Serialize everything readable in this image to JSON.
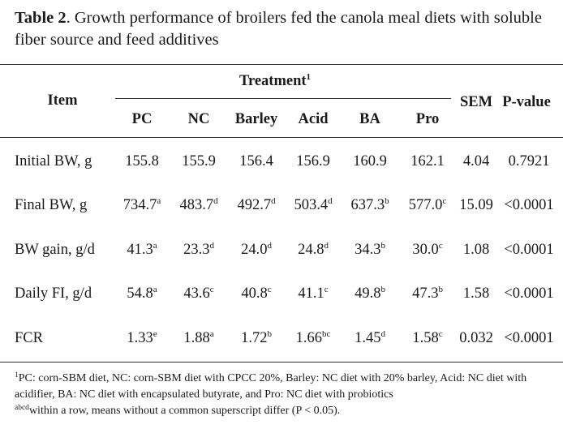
{
  "title": {
    "label": "Table 2",
    "text": ". Growth performance of broilers fed the canola meal diets with soluble fiber source and feed additives"
  },
  "header": {
    "item": "Item",
    "treatment": "Treatment",
    "treatment_sup": "1",
    "columns": [
      "PC",
      "NC",
      "Barley",
      "Acid",
      "BA",
      "Pro"
    ],
    "sem": "SEM",
    "pvalue": "P-value"
  },
  "rows": [
    {
      "item": "Initial BW, g",
      "values": [
        [
          "155.8",
          ""
        ],
        [
          "155.9",
          ""
        ],
        [
          "156.4",
          ""
        ],
        [
          "156.9",
          ""
        ],
        [
          "160.9",
          ""
        ],
        [
          "162.1",
          ""
        ]
      ],
      "sem": "4.04",
      "p": "0.7921"
    },
    {
      "item": "Final BW, g",
      "values": [
        [
          "734.7",
          "a"
        ],
        [
          "483.7",
          "d"
        ],
        [
          "492.7",
          "d"
        ],
        [
          "503.4",
          "d"
        ],
        [
          "637.3",
          "b"
        ],
        [
          "577.0",
          "c"
        ]
      ],
      "sem": "15.09",
      "p": "<0.0001"
    },
    {
      "item": "BW gain, g/d",
      "values": [
        [
          "41.3",
          "a"
        ],
        [
          "23.3",
          "d"
        ],
        [
          "24.0",
          "d"
        ],
        [
          "24.8",
          "d"
        ],
        [
          "34.3",
          "b"
        ],
        [
          "30.0",
          "c"
        ]
      ],
      "sem": "1.08",
      "p": "<0.0001"
    },
    {
      "item": "Daily FI, g/d",
      "values": [
        [
          "54.8",
          "a"
        ],
        [
          "43.6",
          "c"
        ],
        [
          "40.8",
          "c"
        ],
        [
          "41.1",
          "c"
        ],
        [
          "49.8",
          "b"
        ],
        [
          "47.3",
          "b"
        ]
      ],
      "sem": "1.58",
      "p": "<0.0001"
    },
    {
      "item": "FCR",
      "values": [
        [
          "1.33",
          "e"
        ],
        [
          "1.88",
          "a"
        ],
        [
          "1.72",
          "b"
        ],
        [
          "1.66",
          "bc"
        ],
        [
          "1.45",
          "d"
        ],
        [
          "1.58",
          "c"
        ]
      ],
      "sem": "0.032",
      "p": "<0.0001"
    }
  ],
  "footnotes": {
    "fn1_sup": "1",
    "fn1_text": "PC: corn-SBM diet, NC: corn-SBM diet with CPCC 20%, Barley: NC diet with 20% barley, Acid: NC diet with acidifier, BA: NC diet with encapsulated butyrate, and Pro: NC diet with probiotics",
    "fn2_sup": "abcd",
    "fn2_text": "within a row, means without a common superscript differ (P < 0.05)."
  }
}
